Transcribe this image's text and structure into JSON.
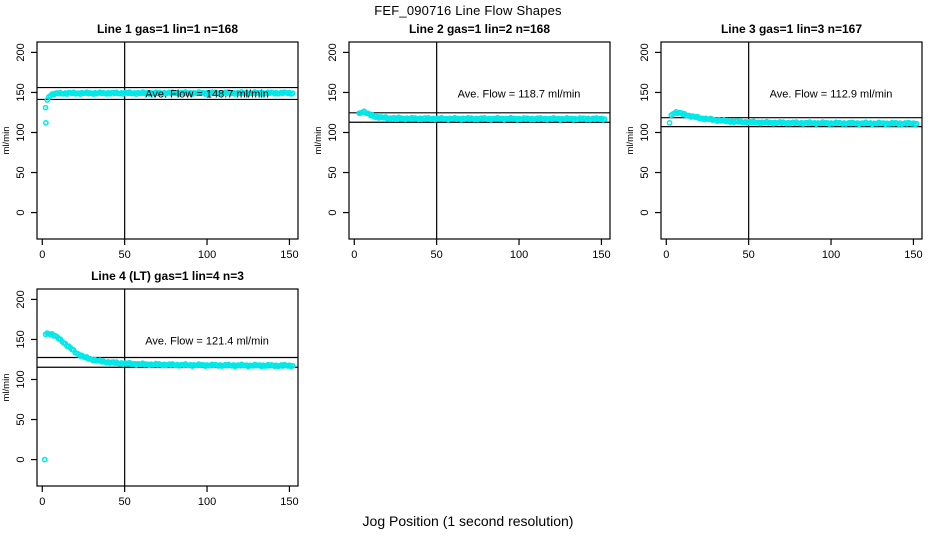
{
  "page": {
    "main_title": "FEF_090716  Line Flow Shapes",
    "x_axis_label": "Jog Position (1 second resolution)"
  },
  "colors": {
    "points": "#00e8e8",
    "axis": "#000000",
    "reference_lines": "#000000",
    "background": "#ffffff"
  },
  "chart_data": [
    {
      "type": "scatter",
      "title": "Line 1 gas=1 lin=1 n=168",
      "ylabel": "ml/min",
      "ave_flow": 148.7,
      "ave_flow_label": "Ave. Flow =  148.7  ml/min",
      "label_pos": {
        "x": 100,
        "y": 149
      },
      "xticks": [
        0,
        50,
        100,
        150
      ],
      "yticks": [
        0,
        50,
        100,
        150,
        200
      ],
      "xlim": [
        -3.2,
        155.2
      ],
      "ylim": [
        -33,
        213
      ],
      "vline_x": 50,
      "hlines": [
        156.1,
        141.3
      ],
      "x_step": 1,
      "x_end": 152,
      "outliers": [
        [
          2,
          131
        ],
        [
          2.2,
          112
        ]
      ],
      "keypoints": [
        [
          3,
          140
        ],
        [
          3.5,
          143
        ],
        [
          4,
          145
        ],
        [
          5,
          146.8
        ],
        [
          6,
          147.6
        ],
        [
          8,
          148.4
        ],
        [
          10,
          148.8
        ],
        [
          14,
          149
        ],
        [
          25,
          149.1
        ],
        [
          60,
          149.2
        ],
        [
          100,
          149.3
        ],
        [
          152,
          149.3
        ]
      ]
    },
    {
      "type": "scatter",
      "title": "Line 2 gas=1 lin=2 n=168",
      "ylabel": "ml/min",
      "ave_flow": 118.7,
      "ave_flow_label": "Ave. Flow =  118.7  ml/min",
      "label_pos": {
        "x": 100,
        "y": 149
      },
      "xticks": [
        0,
        50,
        100,
        150
      ],
      "yticks": [
        0,
        50,
        100,
        150,
        200
      ],
      "xlim": [
        -3.2,
        155.2
      ],
      "ylim": [
        -33,
        213
      ],
      "vline_x": 50,
      "hlines": [
        124.6,
        112.8
      ],
      "x_step": 1,
      "x_end": 152,
      "outliers": [],
      "keypoints": [
        [
          3,
          123.5
        ],
        [
          4,
          125
        ],
        [
          5,
          126
        ],
        [
          6,
          126
        ],
        [
          7,
          125
        ],
        [
          8,
          123.5
        ],
        [
          10,
          121.5
        ],
        [
          13,
          119.8
        ],
        [
          16,
          118.8
        ],
        [
          20,
          118
        ],
        [
          30,
          117.5
        ],
        [
          50,
          117.2
        ],
        [
          100,
          117.1
        ],
        [
          152,
          117
        ]
      ]
    },
    {
      "type": "scatter",
      "title": "Line 3 gas=1 lin=3 n=167",
      "ylabel": "ml/min",
      "ave_flow": 112.9,
      "ave_flow_label": "Ave. Flow =  112.9  ml/min",
      "label_pos": {
        "x": 100,
        "y": 149
      },
      "xticks": [
        0,
        50,
        100,
        150
      ],
      "yticks": [
        0,
        50,
        100,
        150,
        200
      ],
      "xlim": [
        -3.2,
        155.2
      ],
      "ylim": [
        -33,
        213
      ],
      "vline_x": 50,
      "hlines": [
        118.5,
        107.3
      ],
      "x_step": 1,
      "x_end": 152,
      "outliers": [
        [
          2,
          112
        ]
      ],
      "keypoints": [
        [
          3,
          121
        ],
        [
          4,
          123.5
        ],
        [
          5,
          125
        ],
        [
          6,
          125.2
        ],
        [
          8,
          124.3
        ],
        [
          10,
          123
        ],
        [
          14,
          120.8
        ],
        [
          18,
          119
        ],
        [
          24,
          117
        ],
        [
          30,
          115.5
        ],
        [
          38,
          114
        ],
        [
          48,
          113
        ],
        [
          60,
          112.3
        ],
        [
          80,
          111.8
        ],
        [
          120,
          111.4
        ],
        [
          152,
          111.2
        ]
      ]
    },
    {
      "type": "scatter",
      "title": "Line 4 (LT) gas=1 lin=4 n=3",
      "ylabel": "ml/min",
      "ave_flow": 121.4,
      "ave_flow_label": "Ave. Flow =  121.4  ml/min",
      "label_pos": {
        "x": 100,
        "y": 149
      },
      "xticks": [
        0,
        50,
        100,
        150
      ],
      "yticks": [
        0,
        50,
        100,
        150,
        200
      ],
      "xlim": [
        -3.2,
        155.2
      ],
      "ylim": [
        -33,
        213
      ],
      "vline_x": 50,
      "hlines": [
        127.5,
        115.3
      ],
      "x_step": 1,
      "x_end": 152,
      "outliers": [
        [
          1.5,
          0
        ]
      ],
      "keypoints": [
        [
          2,
          157
        ],
        [
          4,
          157.5
        ],
        [
          6,
          156.5
        ],
        [
          8,
          154
        ],
        [
          10,
          151
        ],
        [
          12,
          148
        ],
        [
          14,
          144.5
        ],
        [
          16,
          141
        ],
        [
          18,
          137.5
        ],
        [
          20,
          134
        ],
        [
          23,
          130.5
        ],
        [
          26,
          127.5
        ],
        [
          30,
          125
        ],
        [
          34,
          123.3
        ],
        [
          38,
          122
        ],
        [
          44,
          120.8
        ],
        [
          52,
          119.8
        ],
        [
          62,
          119
        ],
        [
          75,
          118.4
        ],
        [
          90,
          118
        ],
        [
          110,
          117.7
        ],
        [
          152,
          117.3
        ]
      ]
    }
  ]
}
